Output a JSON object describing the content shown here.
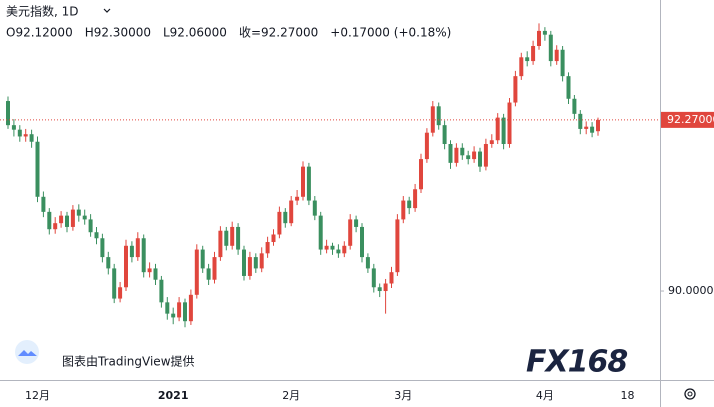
{
  "header": {
    "title": "美元指数, 1D",
    "ohlc": [
      "O92.12000",
      "H92.30000",
      "L92.06000",
      "收=92.27000",
      "+0.17000 (+0.18%)"
    ]
  },
  "watermark": {
    "credit": "图表由TradingView提供",
    "logo": "FX168"
  },
  "chart_data": {
    "type": "candlestick",
    "up_color": "#e0463d",
    "down_color": "#3a8f5f",
    "categories": [
      null,
      null,
      null,
      null,
      null,
      "12月",
      null,
      null,
      null,
      null,
      null,
      null,
      null,
      null,
      null,
      null,
      null,
      null,
      null,
      null,
      null,
      null,
      null,
      null,
      null,
      null,
      null,
      null,
      "2021",
      null,
      null,
      null,
      null,
      null,
      null,
      null,
      null,
      null,
      null,
      null,
      null,
      null,
      null,
      null,
      null,
      null,
      null,
      null,
      "2月",
      null,
      null,
      null,
      null,
      null,
      null,
      null,
      null,
      null,
      null,
      null,
      null,
      null,
      null,
      null,
      null,
      null,
      null,
      "3月",
      null,
      null,
      null,
      null,
      null,
      null,
      null,
      null,
      null,
      null,
      null,
      null,
      null,
      null,
      null,
      null,
      null,
      null,
      null,
      null,
      null,
      null,
      null,
      "4月",
      null,
      null,
      null,
      null,
      null,
      null,
      null,
      null,
      null,
      null,
      null,
      null,
      null,
      "18"
    ],
    "open": [
      92.52,
      92.2,
      92.14,
      92.05,
      92.08,
      91.98,
      91.25,
      91.05,
      90.82,
      90.9,
      91.0,
      90.85,
      91.08,
      91.0,
      90.95,
      90.78,
      90.7,
      90.45,
      90.3,
      89.9,
      90.05,
      90.6,
      90.45,
      90.7,
      90.25,
      90.3,
      90.15,
      89.85,
      89.7,
      89.65,
      89.85,
      89.6,
      89.95,
      90.55,
      90.3,
      90.15,
      90.45,
      90.8,
      90.6,
      90.85,
      90.55,
      90.2,
      90.45,
      90.3,
      90.5,
      90.65,
      90.75,
      91.05,
      90.9,
      91.2,
      91.25,
      91.65,
      91.2,
      91.0,
      90.55,
      90.6,
      90.55,
      90.5,
      90.6,
      90.95,
      90.85,
      90.45,
      90.3,
      90.05,
      90.0,
      90.1,
      90.25,
      90.95,
      91.2,
      91.1,
      91.35,
      91.75,
      92.1,
      92.45,
      92.2,
      91.95,
      91.7,
      91.9,
      91.8,
      91.75,
      91.85,
      91.65,
      91.95,
      92.0,
      92.3,
      91.95,
      92.5,
      92.85,
      93.1,
      93.05,
      93.25,
      93.45,
      93.4,
      93.05,
      93.2,
      92.85,
      92.55,
      92.35,
      92.15,
      92.18,
      92.12,
      null,
      null,
      null,
      null,
      null
    ],
    "high": [
      92.58,
      92.28,
      92.2,
      92.15,
      92.14,
      92.05,
      91.32,
      91.1,
      90.98,
      91.06,
      91.05,
      91.14,
      91.15,
      91.08,
      91.02,
      90.85,
      90.76,
      90.52,
      90.36,
      90.12,
      90.68,
      90.66,
      90.78,
      90.75,
      90.38,
      90.36,
      90.2,
      89.92,
      89.78,
      89.92,
      89.9,
      90.02,
      90.62,
      90.6,
      90.36,
      90.52,
      90.86,
      90.85,
      90.92,
      90.9,
      90.6,
      90.52,
      90.5,
      90.58,
      90.72,
      90.82,
      91.12,
      91.1,
      91.26,
      91.34,
      91.72,
      91.7,
      91.26,
      91.05,
      90.68,
      90.64,
      90.62,
      90.66,
      91.02,
      91.0,
      90.9,
      90.5,
      90.36,
      90.1,
      90.16,
      90.32,
      91.02,
      91.26,
      91.25,
      91.42,
      91.82,
      92.16,
      92.52,
      92.5,
      92.26,
      92.0,
      91.96,
      91.96,
      91.86,
      91.92,
      91.9,
      92.02,
      92.08,
      92.36,
      92.35,
      92.56,
      92.92,
      93.16,
      93.18,
      93.32,
      93.55,
      93.5,
      93.45,
      93.26,
      93.25,
      92.9,
      92.6,
      92.4,
      92.25,
      92.24,
      92.3,
      null,
      null,
      null,
      null,
      null
    ],
    "low": [
      92.15,
      92.05,
      91.98,
      91.98,
      91.9,
      91.18,
      90.98,
      90.75,
      90.76,
      90.84,
      90.78,
      90.8,
      90.92,
      90.88,
      90.72,
      90.62,
      90.38,
      90.22,
      89.84,
      89.85,
      90.0,
      90.38,
      90.4,
      90.18,
      90.18,
      90.08,
      89.78,
      89.62,
      89.56,
      89.6,
      89.52,
      89.55,
      89.9,
      90.24,
      90.08,
      90.1,
      90.4,
      90.54,
      90.55,
      90.48,
      90.14,
      90.15,
      90.24,
      90.25,
      90.44,
      90.6,
      90.7,
      90.84,
      90.86,
      91.14,
      91.2,
      91.14,
      90.94,
      90.48,
      90.5,
      90.48,
      90.44,
      90.45,
      90.55,
      90.78,
      90.38,
      90.24,
      89.98,
      89.92,
      89.7,
      90.04,
      90.2,
      90.9,
      91.02,
      91.05,
      91.3,
      91.7,
      92.05,
      92.14,
      91.88,
      91.62,
      91.65,
      91.74,
      91.68,
      91.7,
      91.58,
      91.6,
      91.9,
      91.95,
      91.88,
      91.9,
      92.45,
      92.8,
      92.98,
      93.0,
      93.2,
      93.32,
      92.98,
      93.0,
      92.78,
      92.48,
      92.28,
      92.08,
      92.08,
      92.04,
      92.06,
      null,
      null,
      null,
      null,
      null
    ],
    "close": [
      92.2,
      92.14,
      92.05,
      92.08,
      91.98,
      91.25,
      91.05,
      90.82,
      90.9,
      91.0,
      90.85,
      91.08,
      91.0,
      90.95,
      90.78,
      90.7,
      90.45,
      90.3,
      89.9,
      90.05,
      90.6,
      90.45,
      90.7,
      90.25,
      90.3,
      90.15,
      89.85,
      89.7,
      89.65,
      89.85,
      89.6,
      89.95,
      90.55,
      90.3,
      90.15,
      90.45,
      90.8,
      90.6,
      90.85,
      90.55,
      90.2,
      90.45,
      90.3,
      90.5,
      90.65,
      90.75,
      91.05,
      90.9,
      91.2,
      91.25,
      91.65,
      91.2,
      91.0,
      90.55,
      90.6,
      90.55,
      90.5,
      90.6,
      90.95,
      90.85,
      90.45,
      90.3,
      90.05,
      90.0,
      90.1,
      90.25,
      90.95,
      91.2,
      91.1,
      91.35,
      91.75,
      92.1,
      92.45,
      92.2,
      91.95,
      91.7,
      91.9,
      91.8,
      91.75,
      91.85,
      91.65,
      91.95,
      92.0,
      92.3,
      91.95,
      92.5,
      92.85,
      93.1,
      93.05,
      93.25,
      93.45,
      93.4,
      93.05,
      93.2,
      92.85,
      92.55,
      92.35,
      92.15,
      92.18,
      92.1,
      92.27,
      null,
      null,
      null,
      null,
      null
    ],
    "ylim": [
      88.82,
      93.86
    ],
    "yticks": [
      {
        "value": 90,
        "label": "90.00000"
      }
    ],
    "last_price": {
      "value": 92.27,
      "label": "92.27000"
    }
  }
}
